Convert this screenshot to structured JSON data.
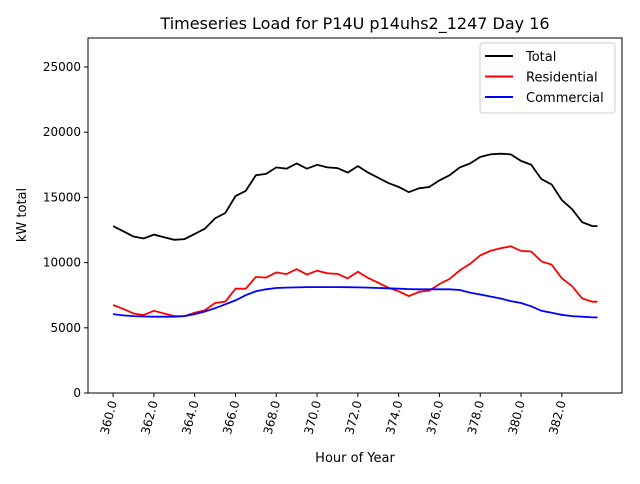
{
  "chart_data": {
    "type": "line",
    "title": "Timeseries Load for P14U p14uhs2_1247  Day 16",
    "xlabel": "Hour of Year",
    "ylabel": "kW total",
    "xlim": [
      358.77,
      384.95
    ],
    "ylim": [
      0,
      27224
    ],
    "x_start": 360,
    "x_step": 0.5,
    "x_last": 383.75,
    "xticks": [
      "360.0",
      "362.0",
      "364.0",
      "366.0",
      "368.0",
      "370.0",
      "372.0",
      "374.0",
      "376.0",
      "378.0",
      "380.0",
      "382.0"
    ],
    "xtick_values": [
      360,
      362,
      364,
      366,
      368,
      370,
      372,
      374,
      376,
      378,
      380,
      382
    ],
    "yticks": [
      "0",
      "5000",
      "10000",
      "15000",
      "20000",
      "25000"
    ],
    "ytick_values": [
      0,
      5000,
      10000,
      15000,
      20000,
      25000
    ],
    "legend_position": "top-right",
    "grid": false,
    "series": [
      {
        "name": "Total",
        "color": "#000000",
        "values": [
          12800,
          12400,
          12000,
          11850,
          12150,
          11950,
          11750,
          11800,
          12200,
          12600,
          13400,
          13800,
          15100,
          15500,
          16700,
          16800,
          17300,
          17200,
          17600,
          17200,
          17500,
          17300,
          17250,
          16900,
          17400,
          16900,
          16500,
          16100,
          15800,
          15400,
          15700,
          15800,
          16300,
          16700,
          17300,
          17600,
          18100,
          18300,
          18350,
          18300,
          17800,
          17500,
          16400,
          16000,
          14800,
          14100,
          13100,
          12800,
          12800
        ]
      },
      {
        "name": "Residential",
        "color": "#ff0000",
        "values": [
          6750,
          6450,
          6100,
          5980,
          6300,
          6100,
          5900,
          5900,
          6150,
          6350,
          6900,
          7000,
          8000,
          8000,
          8900,
          8850,
          9250,
          9120,
          9500,
          9080,
          9380,
          9180,
          9130,
          8790,
          9300,
          8820,
          8450,
          8070,
          7800,
          7430,
          7750,
          7850,
          8350,
          8750,
          9400,
          9900,
          10550,
          10900,
          11100,
          11250,
          10900,
          10850,
          10100,
          9850,
          8800,
          8200,
          7250,
          7000,
          7000
        ]
      },
      {
        "name": "Commercial",
        "color": "#0000ff",
        "values": [
          6050,
          5950,
          5900,
          5870,
          5850,
          5850,
          5850,
          5900,
          6050,
          6250,
          6500,
          6800,
          7100,
          7500,
          7800,
          7950,
          8050,
          8080,
          8100,
          8120,
          8120,
          8120,
          8120,
          8110,
          8100,
          8080,
          8050,
          8030,
          8000,
          7970,
          7950,
          7950,
          7950,
          7950,
          7900,
          7700,
          7550,
          7400,
          7250,
          7050,
          6900,
          6650,
          6300,
          6150,
          6000,
          5900,
          5850,
          5800,
          5800
        ]
      }
    ]
  }
}
